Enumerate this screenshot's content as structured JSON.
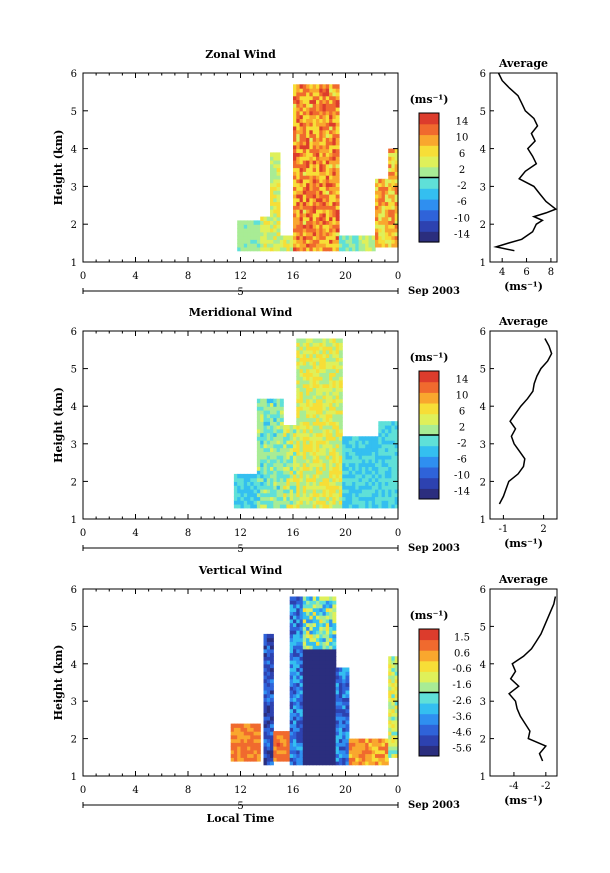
{
  "figure": {
    "xlabel": "Local Time",
    "date_label": "Sep 2003",
    "day_marker": "5",
    "unit_label": "(ms⁻¹)"
  },
  "chart_data": [
    {
      "type": "heatmap",
      "title": "Zonal Wind",
      "ylabel": "Height (km)",
      "xlim": [
        0,
        24
      ],
      "ylim": [
        1,
        6
      ],
      "x_ticks": [
        "0",
        "4",
        "8",
        "12",
        "16",
        "20",
        "0"
      ],
      "y_ticks": [
        "1",
        "2",
        "3",
        "4",
        "5",
        "6"
      ],
      "colorbar": {
        "unit": "(ms⁻¹)",
        "ticks": [
          "14",
          "10",
          "6",
          "2",
          "-2",
          "-6",
          "-10",
          "-14"
        ],
        "range": [
          -16,
          16
        ]
      },
      "profile": {
        "title": "Average",
        "xlabel": "(ms⁻¹)",
        "x_ticks": [
          "4",
          "6",
          "8"
        ],
        "xlim": [
          3,
          8.5
        ],
        "y": [
          1.3,
          1.4,
          1.5,
          1.6,
          1.8,
          2.0,
          2.1,
          2.2,
          2.3,
          2.4,
          2.5,
          2.6,
          2.8,
          3.0,
          3.2,
          3.4,
          3.6,
          3.8,
          4.0,
          4.2,
          4.4,
          4.6,
          4.8,
          5.0,
          5.2,
          5.4,
          5.6,
          5.8,
          6.0
        ],
        "x": [
          5.0,
          3.5,
          4.5,
          5.6,
          6.5,
          6.8,
          7.3,
          6.6,
          7.6,
          8.4,
          8.0,
          7.6,
          7.1,
          6.6,
          5.4,
          5.9,
          6.8,
          6.5,
          6.1,
          6.7,
          6.4,
          6.9,
          6.6,
          5.9,
          5.6,
          5.3,
          4.6,
          4.0,
          3.7
        ]
      }
    },
    {
      "type": "heatmap",
      "title": "Meridional Wind",
      "ylabel": "Height (km)",
      "xlim": [
        0,
        24
      ],
      "ylim": [
        1,
        6
      ],
      "x_ticks": [
        "0",
        "4",
        "8",
        "12",
        "16",
        "20",
        "0"
      ],
      "y_ticks": [
        "1",
        "2",
        "3",
        "4",
        "5",
        "6"
      ],
      "colorbar": {
        "unit": "(ms⁻¹)",
        "ticks": [
          "14",
          "10",
          "6",
          "2",
          "-2",
          "-6",
          "-10",
          "-14"
        ],
        "range": [
          -16,
          16
        ]
      },
      "profile": {
        "title": "Average",
        "xlabel": "(ms⁻¹)",
        "x_ticks": [
          "-1",
          "2"
        ],
        "xlim": [
          -2,
          3
        ],
        "y": [
          1.4,
          1.6,
          1.8,
          2.0,
          2.2,
          2.4,
          2.6,
          2.8,
          3.0,
          3.2,
          3.4,
          3.6,
          3.8,
          4.0,
          4.2,
          4.4,
          4.6,
          4.8,
          5.0,
          5.2,
          5.4,
          5.6,
          5.8
        ],
        "x": [
          -1.3,
          -1.0,
          -0.8,
          -0.6,
          0.1,
          0.5,
          0.6,
          0.2,
          -0.2,
          -0.4,
          -0.1,
          -0.5,
          -0.1,
          0.3,
          0.8,
          1.2,
          1.3,
          1.5,
          1.8,
          2.3,
          2.6,
          2.4,
          2.1
        ]
      }
    },
    {
      "type": "heatmap",
      "title": "Vertical Wind",
      "ylabel": "Height (km)",
      "xlim": [
        0,
        24
      ],
      "ylim": [
        1,
        6
      ],
      "x_ticks": [
        "0",
        "4",
        "8",
        "12",
        "16",
        "20",
        "0"
      ],
      "y_ticks": [
        "1",
        "2",
        "3",
        "4",
        "5",
        "6"
      ],
      "colorbar": {
        "unit": "(ms⁻¹)",
        "ticks": [
          "1.5",
          "0.6",
          "-0.6",
          "-1.6",
          "-2.6",
          "-3.6",
          "-4.6",
          "-5.6"
        ],
        "range": [
          -6,
          2
        ]
      },
      "profile": {
        "title": "Average",
        "xlabel": "(ms⁻¹)",
        "x_ticks": [
          "-4",
          "-2"
        ],
        "xlim": [
          -5.5,
          -1.3
        ],
        "y": [
          1.4,
          1.6,
          1.8,
          2.0,
          2.2,
          2.4,
          2.6,
          2.8,
          3.0,
          3.2,
          3.4,
          3.6,
          3.8,
          4.0,
          4.2,
          4.4,
          4.6,
          4.8,
          5.0,
          5.2,
          5.4,
          5.6,
          5.8
        ],
        "x": [
          -2.2,
          -2.4,
          -2.0,
          -3.1,
          -3.0,
          -3.3,
          -3.6,
          -3.8,
          -3.9,
          -4.3,
          -3.7,
          -4.2,
          -3.9,
          -4.1,
          -3.4,
          -2.9,
          -2.6,
          -2.3,
          -2.1,
          -1.9,
          -1.7,
          -1.5,
          -1.4
        ]
      }
    }
  ]
}
